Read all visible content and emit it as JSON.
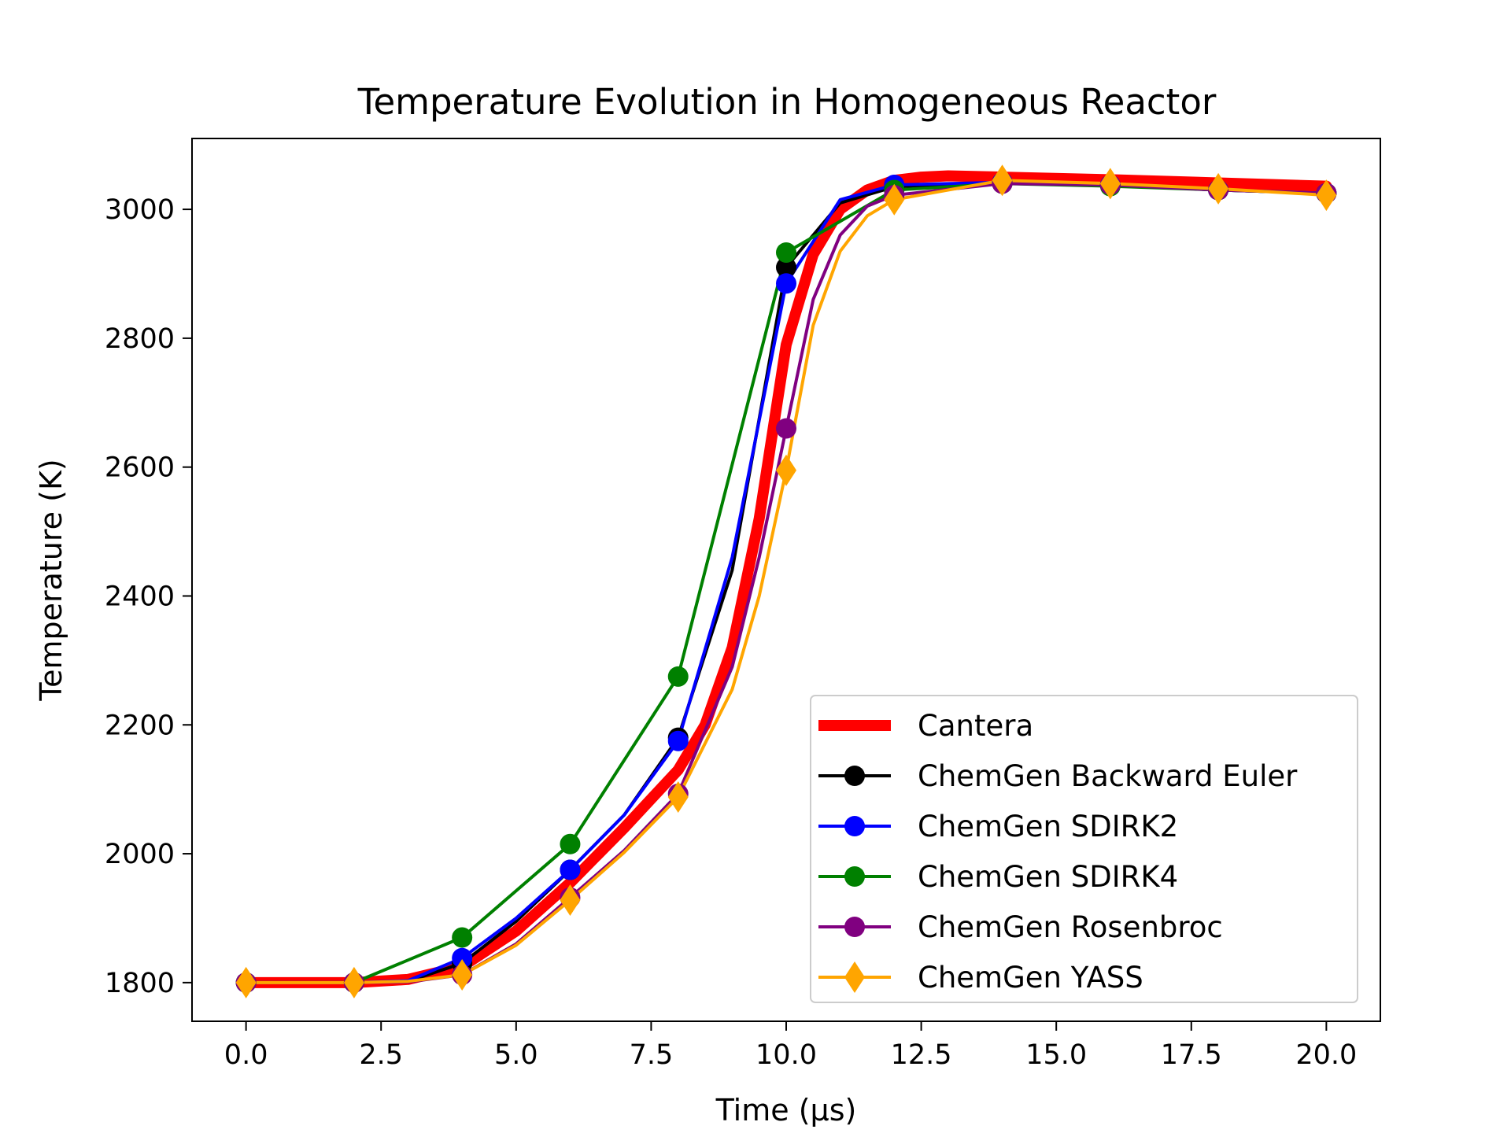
{
  "chart_data": {
    "type": "line",
    "title": "Temperature Evolution in Homogeneous Reactor",
    "xlabel": "Time (μs)",
    "ylabel": "Temperature (K)",
    "xlim": [
      -1.0,
      21.0
    ],
    "ylim": [
      1740,
      3110
    ],
    "xticks": [
      0.0,
      2.5,
      5.0,
      7.5,
      10.0,
      12.5,
      15.0,
      17.5,
      20.0
    ],
    "xtick_labels": [
      "0.0",
      "2.5",
      "5.0",
      "7.5",
      "10.0",
      "12.5",
      "15.0",
      "17.5",
      "20.0"
    ],
    "yticks": [
      1800,
      2000,
      2200,
      2400,
      2600,
      2800,
      3000
    ],
    "ytick_labels": [
      "1800",
      "2000",
      "2200",
      "2400",
      "2600",
      "2800",
      "3000"
    ],
    "grid": false,
    "legend_position": "lower-right",
    "series": [
      {
        "name": "Cantera",
        "color": "#ff0000",
        "marker": "none",
        "linewidth": "thick",
        "x": [
          0,
          2,
          3,
          4,
          5,
          6,
          7,
          8,
          8.5,
          9,
          9.5,
          10,
          10.5,
          11,
          11.5,
          12,
          12.5,
          13,
          14,
          16,
          18,
          20
        ],
        "y": [
          1800,
          1800,
          1805,
          1825,
          1880,
          1955,
          2040,
          2130,
          2200,
          2320,
          2520,
          2790,
          2930,
          3000,
          3030,
          3045,
          3050,
          3052,
          3050,
          3046,
          3041,
          3036
        ]
      },
      {
        "name": "ChemGen Backward Euler",
        "color": "#000000",
        "marker": "circle",
        "x": [
          0,
          2,
          3,
          4,
          5,
          6,
          7,
          8,
          9,
          10,
          11,
          12,
          14,
          16,
          18,
          20
        ],
        "y": [
          1800,
          1800,
          1802,
          1830,
          1895,
          1975,
          2060,
          2180,
          2440,
          2910,
          3010,
          3035,
          3042,
          3038,
          3030,
          3025
        ],
        "markers_x": [
          0,
          2,
          4,
          6,
          8,
          10,
          12,
          14,
          16,
          18,
          20
        ],
        "markers_y": [
          1800,
          1800,
          1830,
          1975,
          2180,
          2910,
          3035,
          3042,
          3038,
          3030,
          3025
        ]
      },
      {
        "name": "ChemGen SDIRK2",
        "color": "#0000ff",
        "marker": "circle",
        "x": [
          0,
          2,
          3,
          4,
          5,
          6,
          7,
          8,
          9,
          10,
          11,
          12,
          14,
          16,
          18,
          20
        ],
        "y": [
          1800,
          1800,
          1803,
          1838,
          1900,
          1975,
          2060,
          2175,
          2460,
          2885,
          3015,
          3038,
          3042,
          3038,
          3030,
          3025
        ],
        "markers_x": [
          0,
          2,
          4,
          6,
          8,
          10,
          12,
          14,
          16,
          18,
          20
        ],
        "markers_y": [
          1800,
          1800,
          1838,
          1975,
          2175,
          2885,
          3038,
          3042,
          3038,
          3030,
          3025
        ]
      },
      {
        "name": "ChemGen SDIRK4",
        "color": "#008000",
        "marker": "circle",
        "x": [
          0,
          2,
          4,
          6,
          8,
          10,
          12,
          14,
          16,
          18,
          20
        ],
        "y": [
          1800,
          1800,
          1870,
          2015,
          2275,
          2933,
          3030,
          3040,
          3036,
          3030,
          3025
        ]
      },
      {
        "name": "ChemGen Rosenbroc",
        "color": "#800080",
        "marker": "circle",
        "x": [
          0,
          2,
          3,
          4,
          5,
          6,
          7,
          8,
          9,
          9.5,
          10,
          10.5,
          11,
          11.5,
          12,
          14,
          16,
          18,
          20
        ],
        "y": [
          1800,
          1800,
          1801,
          1812,
          1860,
          1932,
          2005,
          2093,
          2290,
          2460,
          2660,
          2860,
          2960,
          3005,
          3022,
          3040,
          3038,
          3030,
          3025
        ],
        "markers_x": [
          0,
          2,
          4,
          6,
          8,
          10,
          12,
          14,
          16,
          18,
          20
        ],
        "markers_y": [
          1800,
          1800,
          1812,
          1932,
          2093,
          2660,
          3022,
          3040,
          3038,
          3030,
          3025
        ]
      },
      {
        "name": "ChemGen YASS",
        "color": "#ffa500",
        "marker": "diamond",
        "x": [
          0,
          2,
          3,
          4,
          5,
          6,
          7,
          8,
          9,
          9.5,
          10,
          10.5,
          11,
          11.5,
          12,
          14,
          16,
          18,
          20
        ],
        "y": [
          1800,
          1800,
          1802,
          1812,
          1858,
          1928,
          2002,
          2088,
          2255,
          2400,
          2595,
          2820,
          2935,
          2990,
          3015,
          3045,
          3040,
          3032,
          3022
        ],
        "markers_x": [
          0,
          2,
          4,
          6,
          8,
          10,
          12,
          14,
          16,
          18,
          20
        ],
        "markers_y": [
          1800,
          1800,
          1812,
          1928,
          2088,
          2595,
          3015,
          3045,
          3040,
          3032,
          3022
        ]
      }
    ]
  }
}
